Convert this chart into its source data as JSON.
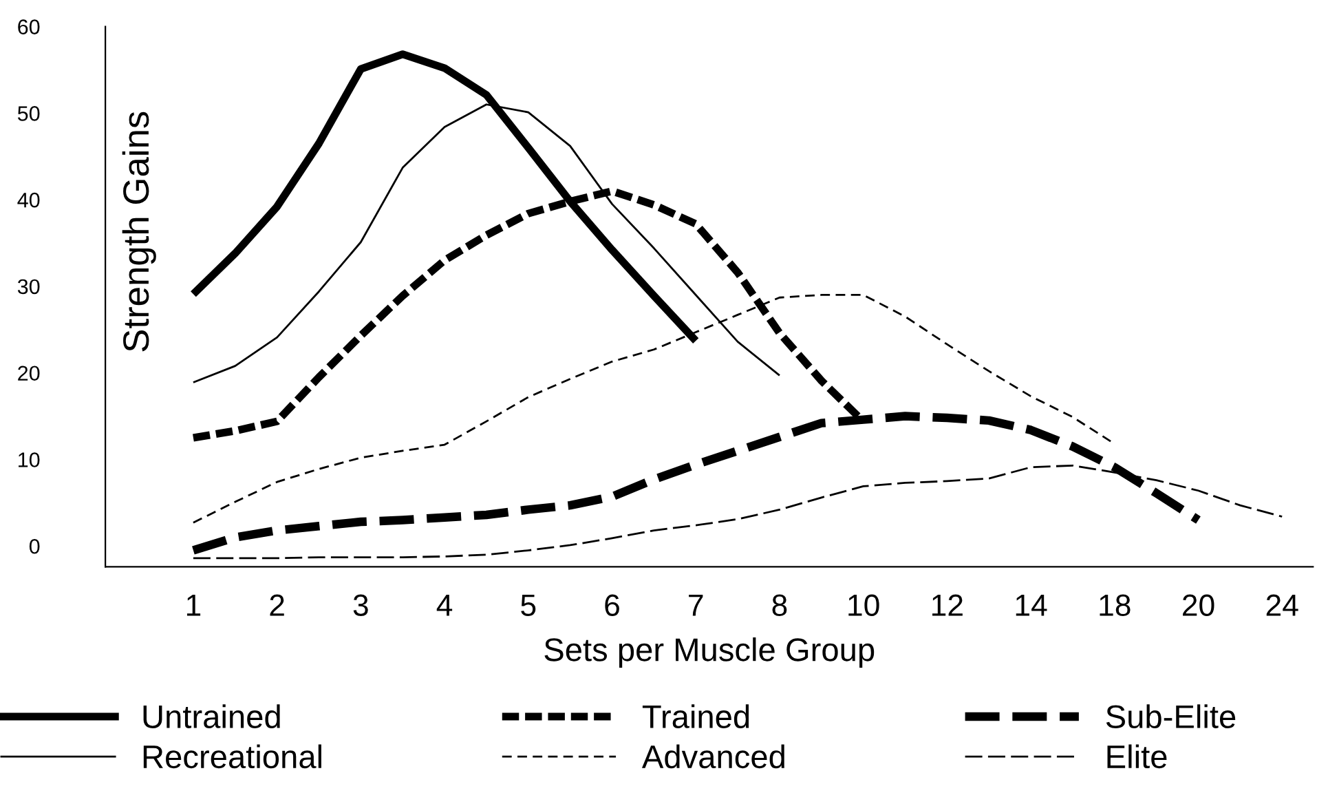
{
  "chart_data": {
    "type": "line",
    "xlabel": "Sets per Muscle Group",
    "ylabel": "Strength Gains",
    "categories": [
      "1",
      null,
      "2",
      null,
      "3",
      null,
      "4",
      null,
      "5",
      null,
      "6",
      null,
      "7",
      null,
      "8",
      null,
      "10",
      null,
      "12",
      null,
      "14",
      null,
      "18",
      null,
      "20",
      null,
      "24"
    ],
    "ylim": [
      -2.4,
      60
    ],
    "yticks": [
      0,
      10,
      20,
      30,
      40,
      50,
      60
    ],
    "grid": false,
    "legend": "bottom",
    "series": [
      {
        "name": "Untrained",
        "color": "#000000",
        "line_style": "solid",
        "values": [
          29.1,
          33.8,
          39.2,
          46.5,
          55.1,
          56.8,
          55.2,
          52.1,
          46.0,
          39.8,
          34.2,
          28.9,
          23.7,
          null,
          null,
          null,
          null,
          null,
          null,
          null,
          null,
          null,
          null,
          null,
          null,
          null,
          null
        ]
      },
      {
        "name": "Trained",
        "color": "#000000",
        "line_style": "dashed",
        "values": [
          12.5,
          13.3,
          14.4,
          19.5,
          24.3,
          28.9,
          33.0,
          35.9,
          38.4,
          39.8,
          41.0,
          39.4,
          37.2,
          31.6,
          24.6,
          19.1,
          14.4,
          null,
          null,
          null,
          null,
          null,
          null,
          null,
          null,
          null,
          null
        ]
      },
      {
        "name": "Sub-Elite",
        "color": "#000000",
        "line_style": "dashed",
        "values": [
          -0.5,
          1.0,
          1.8,
          2.3,
          2.8,
          3.0,
          3.3,
          3.6,
          4.2,
          4.7,
          5.7,
          7.7,
          9.4,
          11.0,
          12.6,
          14.2,
          14.6,
          15.0,
          14.8,
          14.5,
          13.4,
          11.5,
          9.1,
          6.1,
          3.0,
          null,
          null
        ]
      },
      {
        "name": "Recreational",
        "color": "#000000",
        "line_style": "solid",
        "values": [
          18.9,
          20.8,
          24.1,
          29.4,
          35.1,
          43.7,
          48.4,
          51.0,
          50.1,
          46.2,
          39.5,
          34.4,
          29.0,
          23.6,
          19.7,
          null,
          null,
          null,
          null,
          null,
          null,
          null,
          null,
          null,
          null,
          null,
          null
        ]
      },
      {
        "name": "Advanced",
        "color": "#000000",
        "line_style": "dashed",
        "values": [
          2.7,
          5.1,
          7.4,
          8.9,
          10.2,
          11.0,
          11.7,
          14.4,
          17.2,
          19.3,
          21.3,
          22.7,
          24.7,
          26.7,
          28.7,
          29.0,
          29.0,
          26.5,
          23.3,
          20.2,
          17.3,
          14.9,
          11.8,
          null,
          null,
          null,
          null
        ]
      },
      {
        "name": "Elite",
        "color": "#000000",
        "line_style": "dashed",
        "values": [
          -1.4,
          -1.4,
          -1.4,
          -1.3,
          -1.3,
          -1.3,
          -1.2,
          -1.0,
          -0.5,
          0.1,
          0.9,
          1.8,
          2.4,
          3.1,
          4.2,
          5.6,
          6.9,
          7.3,
          7.5,
          7.8,
          9.1,
          9.3,
          8.5,
          7.6,
          6.4,
          4.7,
          3.4
        ]
      }
    ]
  }
}
